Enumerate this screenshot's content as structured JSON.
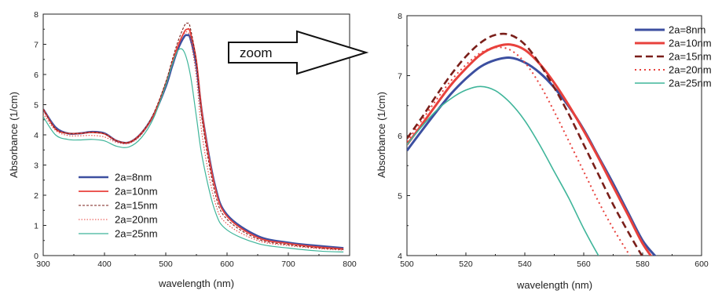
{
  "annotation": {
    "arrow_label": "zoom"
  },
  "chart_data": [
    {
      "type": "line",
      "xlabel": "wavelength (nm)",
      "ylabel": "Absorbance (1/cm)",
      "xlim": [
        300,
        800
      ],
      "ylim": [
        0,
        8
      ],
      "xticks": [
        "300",
        "400",
        "500",
        "600",
        "700",
        "800"
      ],
      "yticks": [
        "0",
        "1",
        "2",
        "3",
        "4",
        "5",
        "6",
        "7",
        "8"
      ],
      "legend_position": "lower-left",
      "series": [
        {
          "name": "2a=8nm",
          "color": "#3c4fa0",
          "dash": "solid",
          "width": 2.6,
          "x": [
            300,
            320,
            340,
            360,
            380,
            400,
            420,
            440,
            460,
            480,
            500,
            510,
            520,
            530,
            535,
            540,
            550,
            560,
            580,
            600,
            650,
            700,
            750,
            790
          ],
          "y": [
            4.85,
            4.25,
            4.05,
            4.05,
            4.1,
            4.05,
            3.8,
            3.75,
            4.05,
            4.65,
            5.6,
            6.25,
            6.85,
            7.25,
            7.3,
            7.2,
            6.3,
            4.6,
            2.35,
            1.35,
            0.65,
            0.43,
            0.32,
            0.25
          ]
        },
        {
          "name": "2a=10nm",
          "color": "#e8413c",
          "dash": "solid",
          "width": 1.8,
          "x": [
            300,
            320,
            340,
            360,
            380,
            400,
            420,
            440,
            460,
            480,
            500,
            510,
            520,
            530,
            535,
            540,
            550,
            560,
            580,
            600,
            650,
            700,
            750,
            790
          ],
          "y": [
            4.85,
            4.2,
            4.05,
            4.05,
            4.08,
            4.03,
            3.8,
            3.75,
            4.05,
            4.65,
            5.7,
            6.35,
            6.95,
            7.4,
            7.5,
            7.4,
            6.45,
            4.6,
            2.3,
            1.3,
            0.6,
            0.4,
            0.28,
            0.22
          ]
        },
        {
          "name": "2a=15nm",
          "color": "#7a1f1a",
          "dash": "3,2",
          "width": 1.1,
          "x": [
            300,
            320,
            340,
            360,
            380,
            400,
            420,
            440,
            460,
            480,
            500,
            510,
            520,
            530,
            535,
            540,
            550,
            560,
            580,
            600,
            650,
            700,
            750,
            790
          ],
          "y": [
            4.85,
            4.2,
            4.05,
            4.05,
            4.08,
            4.03,
            3.8,
            3.75,
            4.05,
            4.7,
            5.75,
            6.45,
            7.1,
            7.6,
            7.7,
            7.55,
            6.4,
            4.4,
            2.1,
            1.2,
            0.55,
            0.36,
            0.25,
            0.2
          ]
        },
        {
          "name": "2a=20nm",
          "color": "#e8413c",
          "dash": "1.5,2",
          "width": 1.1,
          "x": [
            300,
            320,
            340,
            360,
            380,
            400,
            420,
            440,
            460,
            480,
            500,
            510,
            520,
            530,
            535,
            540,
            550,
            560,
            580,
            600,
            650,
            700,
            750,
            790
          ],
          "y": [
            4.7,
            4.15,
            3.98,
            3.97,
            3.98,
            3.93,
            3.75,
            3.72,
            4.0,
            4.65,
            5.65,
            6.35,
            7.0,
            7.35,
            7.4,
            7.2,
            5.9,
            3.9,
            1.8,
            1.05,
            0.5,
            0.33,
            0.23,
            0.18
          ]
        },
        {
          "name": "2a=25nm",
          "color": "#3fb59a",
          "dash": "solid",
          "width": 1.2,
          "x": [
            300,
            320,
            340,
            360,
            380,
            400,
            420,
            440,
            460,
            480,
            500,
            510,
            520,
            530,
            540,
            550,
            560,
            580,
            600,
            650,
            700,
            750,
            790
          ],
          "y": [
            4.6,
            4.0,
            3.85,
            3.83,
            3.85,
            3.8,
            3.62,
            3.6,
            3.9,
            4.55,
            5.65,
            6.3,
            6.8,
            6.75,
            6.0,
            4.6,
            3.2,
            1.5,
            0.85,
            0.4,
            0.25,
            0.15,
            0.12
          ]
        }
      ]
    },
    {
      "type": "line",
      "xlabel": "wavelength (nm)",
      "ylabel": "Absorbance (1/cm)",
      "xlim": [
        500,
        600
      ],
      "ylim": [
        4,
        8
      ],
      "xticks": [
        "500",
        "520",
        "540",
        "560",
        "580",
        "600"
      ],
      "yticks": [
        "4",
        "5",
        "6",
        "7",
        "8"
      ],
      "legend_position": "top-right",
      "series": [
        {
          "name": "2a=8nm",
          "color": "#3c4fa0",
          "dash": "solid",
          "width": 3,
          "x": [
            500,
            505,
            510,
            515,
            520,
            525,
            530,
            535,
            540,
            545,
            550,
            555,
            560,
            565,
            570,
            575,
            580,
            584.5
          ],
          "y": [
            5.75,
            6.08,
            6.4,
            6.7,
            6.95,
            7.15,
            7.26,
            7.3,
            7.22,
            7.05,
            6.8,
            6.48,
            6.1,
            5.65,
            5.2,
            4.72,
            4.25,
            3.98
          ]
        },
        {
          "name": "2a=10nm",
          "color": "#e8413c",
          "dash": "solid",
          "width": 3,
          "x": [
            500,
            505,
            510,
            515,
            520,
            525,
            530,
            535,
            540,
            545,
            550,
            555,
            560,
            565,
            570,
            575,
            580,
            585
          ],
          "y": [
            5.85,
            6.18,
            6.52,
            6.85,
            7.12,
            7.35,
            7.48,
            7.52,
            7.43,
            7.2,
            6.88,
            6.5,
            6.08,
            5.63,
            5.15,
            4.68,
            4.2,
            3.85
          ]
        },
        {
          "name": "2a=15nm",
          "color": "#7a1f1a",
          "dash": "9,5",
          "width": 2.6,
          "x": [
            500,
            505,
            510,
            515,
            520,
            525,
            530,
            535,
            540,
            545,
            550,
            555,
            560,
            565,
            570,
            575,
            580,
            582
          ],
          "y": [
            5.95,
            6.3,
            6.67,
            7.02,
            7.32,
            7.55,
            7.68,
            7.68,
            7.52,
            7.2,
            6.8,
            6.35,
            5.85,
            5.35,
            4.85,
            4.4,
            3.98,
            3.85
          ]
        },
        {
          "name": "2a=20nm",
          "color": "#e8413c",
          "dash": "2,4",
          "width": 2,
          "x": [
            500,
            505,
            510,
            515,
            520,
            525,
            530,
            535,
            540,
            545,
            550,
            555,
            560,
            565,
            570,
            575,
            577
          ],
          "y": [
            5.9,
            6.25,
            6.6,
            6.92,
            7.18,
            7.38,
            7.47,
            7.43,
            7.22,
            6.86,
            6.4,
            5.9,
            5.4,
            4.9,
            4.45,
            4.05,
            3.9
          ]
        },
        {
          "name": "2a=25nm",
          "color": "#3fb59a",
          "dash": "solid",
          "width": 1.6,
          "x": [
            500,
            505,
            510,
            515,
            520,
            525,
            530,
            535,
            540,
            545,
            550,
            555,
            560,
            565,
            567
          ],
          "y": [
            5.85,
            6.15,
            6.42,
            6.62,
            6.76,
            6.82,
            6.75,
            6.55,
            6.25,
            5.85,
            5.4,
            4.95,
            4.45,
            4.0,
            3.85
          ]
        }
      ]
    }
  ]
}
